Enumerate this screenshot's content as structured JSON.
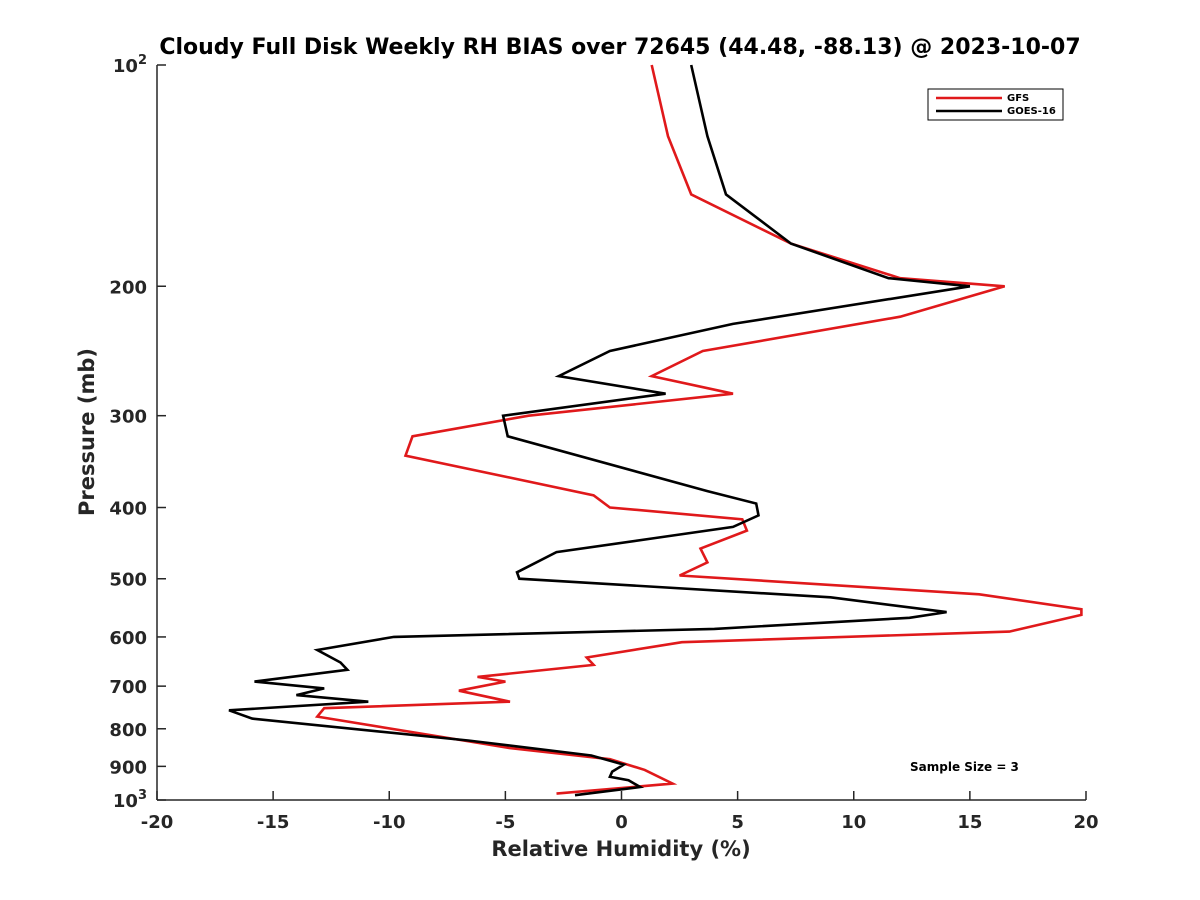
{
  "chart_data": {
    "type": "line",
    "title": "Cloudy Full Disk Weekly RH BIAS over 72645 (44.48, -88.13) @ 2023-10-07",
    "xlabel": "Relative Humidity (%)",
    "ylabel": "Pressure (mb)",
    "xlim": [
      -20,
      20
    ],
    "ylim": [
      100,
      1000
    ],
    "y_scale": "log",
    "y_reversed": true,
    "x_ticks": [
      -20,
      -15,
      -10,
      -5,
      0,
      5,
      10,
      15,
      20
    ],
    "x_tick_labels": [
      "-20",
      "-15",
      "-10",
      "-5",
      "0",
      "5",
      "10",
      "15",
      "20"
    ],
    "y_ticks": [
      {
        "value": 100,
        "label": "10",
        "exp": "2"
      },
      {
        "value": 200,
        "label": "200"
      },
      {
        "value": 300,
        "label": "300"
      },
      {
        "value": 400,
        "label": "400"
      },
      {
        "value": 500,
        "label": "500"
      },
      {
        "value": 600,
        "label": "600"
      },
      {
        "value": 700,
        "label": "700"
      },
      {
        "value": 800,
        "label": "800"
      },
      {
        "value": 900,
        "label": "900"
      },
      {
        "value": 1000,
        "label": "10",
        "exp": "3"
      }
    ],
    "grid": false,
    "legend_position": "top-right",
    "annotation": "Sample Size = 3",
    "series": [
      {
        "name": "GFS",
        "color": "#e0191b",
        "points": [
          [
            1.3,
            100
          ],
          [
            2.0,
            125
          ],
          [
            3.0,
            150
          ],
          [
            7.3,
            175
          ],
          [
            12.0,
            195
          ],
          [
            16.5,
            200
          ],
          [
            12.0,
            220
          ],
          [
            3.5,
            245
          ],
          [
            1.3,
            265
          ],
          [
            4.8,
            280
          ],
          [
            -4.0,
            300
          ],
          [
            -9.0,
            320
          ],
          [
            -9.3,
            340
          ],
          [
            -1.2,
            385
          ],
          [
            -0.5,
            400
          ],
          [
            5.2,
            415
          ],
          [
            5.4,
            430
          ],
          [
            3.4,
            455
          ],
          [
            3.7,
            475
          ],
          [
            2.5,
            495
          ],
          [
            15.4,
            525
          ],
          [
            19.8,
            550
          ],
          [
            19.8,
            560
          ],
          [
            16.7,
            590
          ],
          [
            2.6,
            610
          ],
          [
            -1.5,
            640
          ],
          [
            -1.2,
            655
          ],
          [
            -6.2,
            680
          ],
          [
            -5.0,
            690
          ],
          [
            -7.0,
            710
          ],
          [
            -4.8,
            735
          ],
          [
            -12.8,
            750
          ],
          [
            -13.1,
            770
          ],
          [
            -6.8,
            830
          ],
          [
            -4.8,
            850
          ],
          [
            -0.5,
            880
          ],
          [
            1.0,
            910
          ],
          [
            2.2,
            950
          ],
          [
            -2.8,
            980
          ]
        ]
      },
      {
        "name": "GOES-16",
        "color": "#000000",
        "points": [
          [
            3.0,
            100
          ],
          [
            3.7,
            125
          ],
          [
            4.5,
            150
          ],
          [
            7.3,
            175
          ],
          [
            11.5,
            195
          ],
          [
            15.0,
            200
          ],
          [
            4.8,
            225
          ],
          [
            -0.5,
            245
          ],
          [
            -2.7,
            265
          ],
          [
            1.9,
            280
          ],
          [
            -5.1,
            300
          ],
          [
            -4.9,
            320
          ],
          [
            3.7,
            380
          ],
          [
            5.8,
            395
          ],
          [
            5.9,
            410
          ],
          [
            4.8,
            425
          ],
          [
            1.5,
            440
          ],
          [
            -2.8,
            460
          ],
          [
            -4.5,
            490
          ],
          [
            -4.4,
            500
          ],
          [
            9.0,
            530
          ],
          [
            14.0,
            555
          ],
          [
            12.4,
            565
          ],
          [
            4.0,
            585
          ],
          [
            -9.8,
            600
          ],
          [
            -13.1,
            625
          ],
          [
            -12.1,
            650
          ],
          [
            -11.8,
            665
          ],
          [
            -15.8,
            690
          ],
          [
            -12.8,
            705
          ],
          [
            -14.0,
            720
          ],
          [
            -10.9,
            735
          ],
          [
            -16.9,
            755
          ],
          [
            -15.9,
            775
          ],
          [
            -6.6,
            830
          ],
          [
            -1.3,
            870
          ],
          [
            0.1,
            895
          ],
          [
            -0.4,
            915
          ],
          [
            -0.5,
            930
          ],
          [
            0.3,
            940
          ],
          [
            0.8,
            960
          ],
          [
            -2.0,
            985
          ]
        ]
      }
    ]
  }
}
